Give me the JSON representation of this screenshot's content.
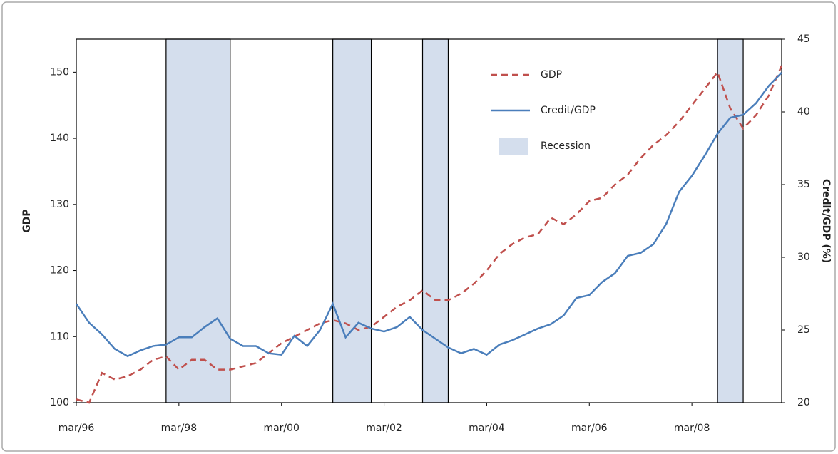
{
  "chart_data": {
    "type": "line",
    "categories": [
      "mar/96",
      null,
      null,
      null,
      null,
      null,
      null,
      null,
      "mar/98",
      null,
      null,
      null,
      null,
      null,
      null,
      null,
      "mar/00",
      null,
      null,
      null,
      null,
      null,
      null,
      null,
      "mar/02",
      null,
      null,
      null,
      null,
      null,
      null,
      null,
      "mar/04",
      null,
      null,
      null,
      null,
      null,
      null,
      null,
      "mar/06",
      null,
      null,
      null,
      null,
      null,
      null,
      null,
      "mar/08",
      null,
      null,
      null,
      null,
      null,
      null,
      null
    ],
    "series": [
      {
        "name": "GDP",
        "color": "#c0504d",
        "dashed": true,
        "axis": "y",
        "values": [
          100.5,
          100,
          104.5,
          103.5,
          104,
          105,
          106.5,
          107,
          105,
          106.5,
          106.5,
          105,
          105,
          105.5,
          106,
          107.5,
          109,
          110,
          111,
          112,
          112.5,
          112,
          111,
          111.5,
          113,
          114.5,
          115.5,
          117,
          115.5,
          115.5,
          116.5,
          118,
          120,
          122.5,
          124,
          125,
          125.5,
          128,
          127,
          128.5,
          130.5,
          131,
          133,
          134.5,
          137,
          139,
          140.5,
          142.5,
          145,
          147.5,
          150,
          144.5,
          141.5,
          143.5,
          146.5,
          151
        ]
      },
      {
        "name": "Credit/GDP",
        "color": "#4a7ebb",
        "dashed": false,
        "axis": "y2",
        "values": [
          26.8,
          25.5,
          24.7,
          23.7,
          23.2,
          23.6,
          23.9,
          24.0,
          24.5,
          24.5,
          25.2,
          25.8,
          24.4,
          23.9,
          23.9,
          23.4,
          23.3,
          24.6,
          23.9,
          25.0,
          26.8,
          24.5,
          25.5,
          25.1,
          24.9,
          25.2,
          25.9,
          25.0,
          24.4,
          23.8,
          23.4,
          23.7,
          23.3,
          24.0,
          24.3,
          24.7,
          25.1,
          25.4,
          26.0,
          27.2,
          27.4,
          28.3,
          28.9,
          30.1,
          30.3,
          30.9,
          32.3,
          34.5,
          35.6,
          37.0,
          38.5,
          39.6,
          39.8,
          40.6,
          41.8,
          42.7
        ]
      }
    ],
    "recession": {
      "name": "Recession",
      "color": "#d4deed",
      "periods": [
        [
          7,
          12
        ],
        [
          20,
          23
        ],
        [
          27,
          29
        ],
        [
          50,
          52
        ]
      ]
    },
    "ylabel": "GDP",
    "y2label": "Credit/GDP (%)",
    "ylim": [
      100,
      155
    ],
    "yticks": [
      100,
      110,
      120,
      130,
      140,
      150
    ],
    "y2lim": [
      20,
      45
    ],
    "y2ticks": [
      20,
      25,
      30,
      35,
      40,
      45
    ]
  }
}
